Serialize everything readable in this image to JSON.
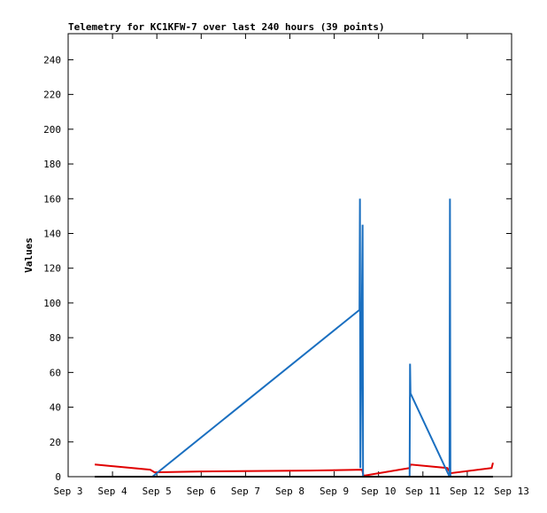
{
  "chart_data": {
    "type": "line",
    "title": "Telemetry for KC1KFW-7 over last 240 hours (39 points)",
    "y_label": "Values",
    "xlim": [
      3,
      13
    ],
    "xticks": [
      {
        "value": 3,
        "label": "Sep 3"
      },
      {
        "value": 4,
        "label": "Sep 4"
      },
      {
        "value": 5,
        "label": "Sep 5"
      },
      {
        "value": 6,
        "label": "Sep 6"
      },
      {
        "value": 7,
        "label": "Sep 7"
      },
      {
        "value": 8,
        "label": "Sep 8"
      },
      {
        "value": 9,
        "label": "Sep 9"
      },
      {
        "value": 10,
        "label": "Sep 10"
      },
      {
        "value": 11,
        "label": "Sep 11"
      },
      {
        "value": 12,
        "label": "Sep 12"
      },
      {
        "value": 13,
        "label": "Sep 13"
      }
    ],
    "ylim": [
      0,
      255
    ],
    "yticks": [
      0,
      20,
      40,
      60,
      80,
      100,
      120,
      140,
      160,
      180,
      200,
      220,
      240
    ],
    "series": [
      {
        "color": "#e00000",
        "x": [
          3.6,
          4.85,
          4.95,
          6.0,
          8.45,
          9.63,
          9.66,
          10.7,
          10.72,
          11.55,
          11.62,
          12.55,
          12.58
        ],
        "values": [
          7,
          4,
          2.5,
          3,
          3.5,
          4,
          0.5,
          5,
          7,
          5,
          2,
          5,
          8
        ]
      },
      {
        "color": "#1a6fc0",
        "x": [
          4.9,
          9.57,
          9.58,
          9.59,
          9.64,
          9.65,
          10.7,
          10.71,
          10.72,
          11.6,
          11.61,
          11.62,
          12.57
        ],
        "values": [
          0,
          96,
          160,
          5,
          145,
          0,
          0,
          65,
          48,
          0,
          160,
          0,
          0
        ]
      },
      {
        "color": "#000000",
        "x": [
          3.6,
          12.58
        ],
        "values": [
          0,
          0
        ]
      }
    ]
  }
}
